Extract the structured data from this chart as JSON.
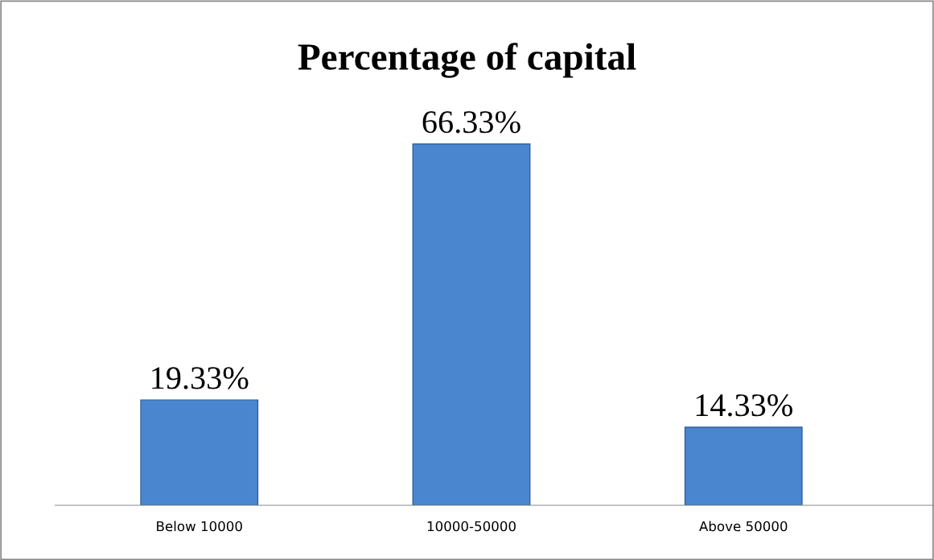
{
  "chart_data": {
    "type": "bar",
    "title": "Percentage of capital",
    "categories": [
      "Below 10000",
      "10000-50000",
      "Above 50000"
    ],
    "values": [
      19.33,
      66.33,
      14.33
    ],
    "value_labels": [
      "19.33%",
      "66.33%",
      "14.33%"
    ],
    "color": "#4a86d0",
    "grid": false,
    "legend": false
  }
}
